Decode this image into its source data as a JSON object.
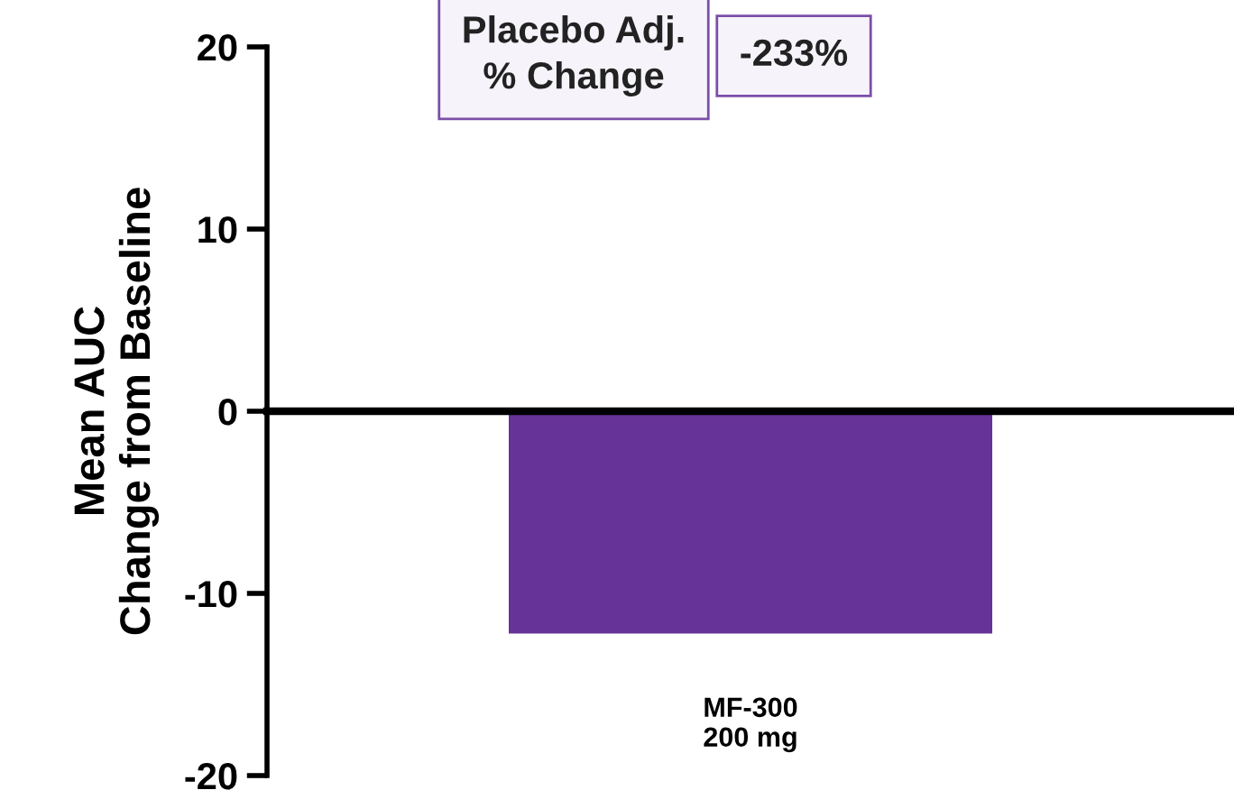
{
  "chart_data": {
    "type": "bar",
    "ylabel": "Mean AUC\nChange from Baseline",
    "categories": [
      "MF-300\n200 mg"
    ],
    "values": [
      -12.2
    ],
    "color": "#663399",
    "ylim": [
      -20,
      20
    ],
    "yticks": [
      20,
      10,
      0,
      {
        "value": -10,
        "label": "-10"
      },
      {
        "value": -20,
        "label": "-20"
      }
    ],
    "annotations": [
      "Placebo Adj.\n% Change",
      "-233%"
    ]
  }
}
